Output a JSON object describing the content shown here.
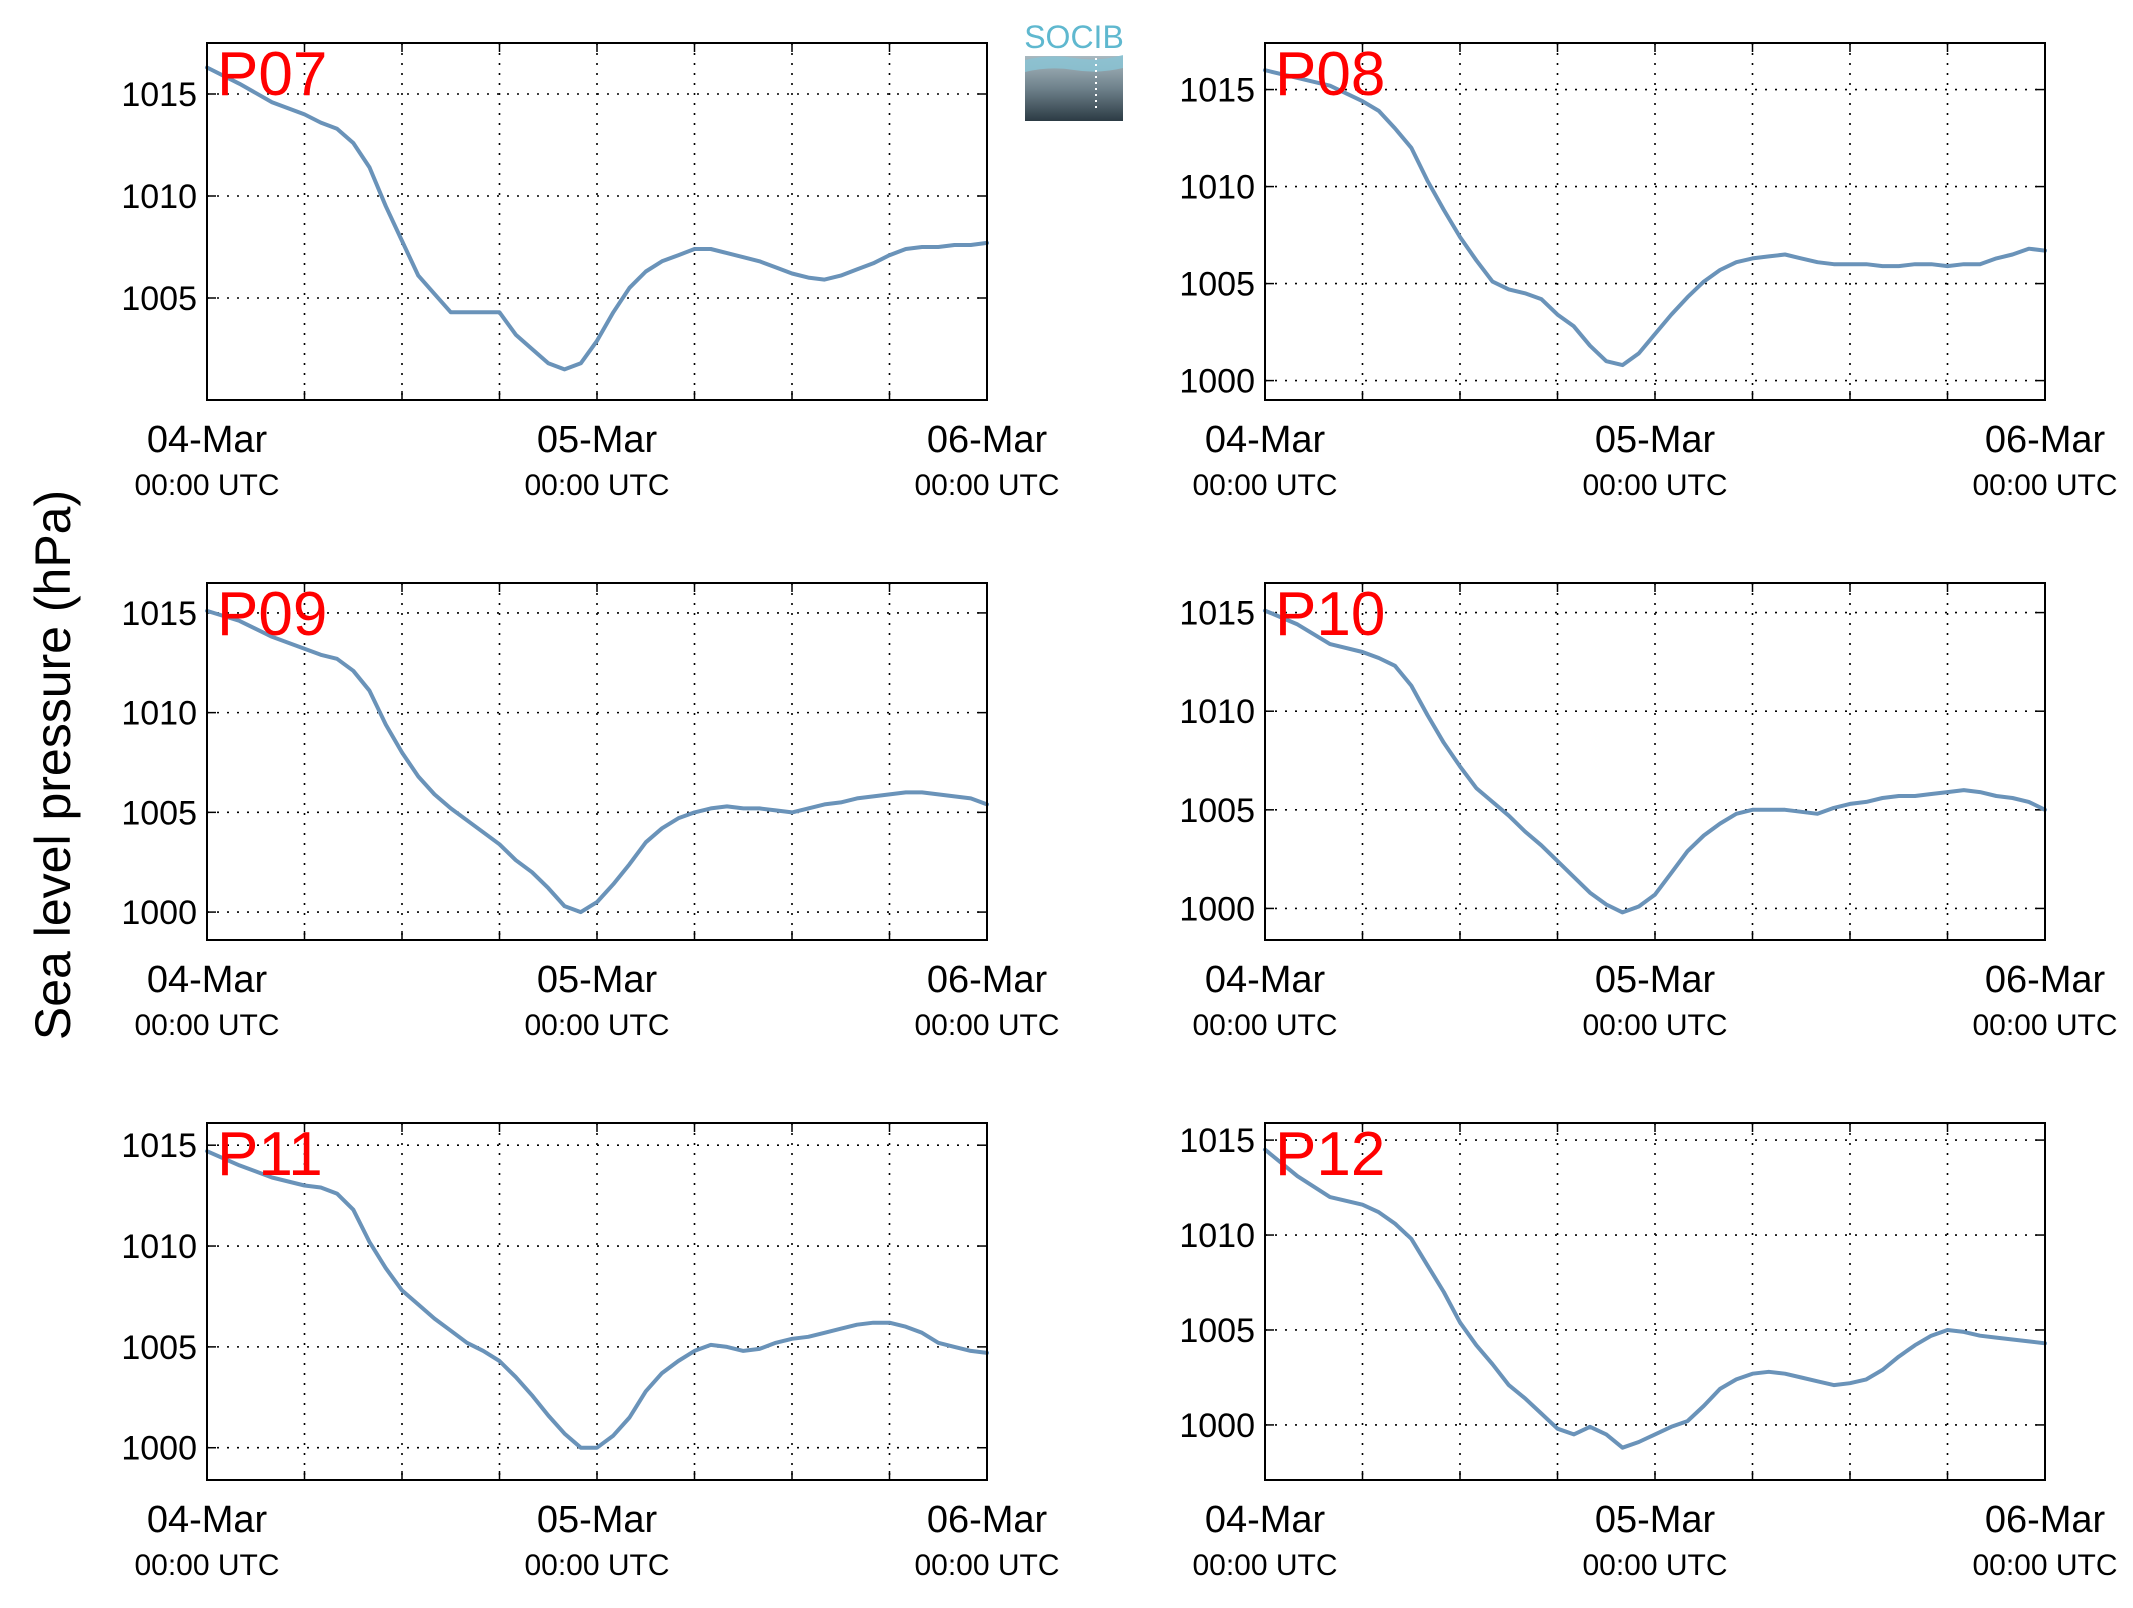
{
  "figure": {
    "ylabel": "Sea level pressure (hPa)",
    "x_tick_dates": [
      "04-Mar",
      "05-Mar",
      "06-Mar"
    ],
    "x_tick_times": [
      "00:00 UTC",
      "00:00 UTC",
      "00:00 UTC"
    ],
    "line_color": "#6a93b9",
    "station_label_color": "#ff0000"
  },
  "logo": {
    "text": "SOCIB"
  },
  "chart_data": [
    {
      "type": "line",
      "name": "P07",
      "x_unit": "hours since 04-Mar 00:00 UTC",
      "xlim": [
        0,
        48
      ],
      "ylim": [
        1000.0,
        1017.5
      ],
      "yticks": [
        1005,
        1010,
        1015
      ],
      "x": [
        0,
        2,
        4,
        6,
        7,
        8,
        9,
        10,
        11,
        12,
        13,
        14,
        15,
        16,
        17,
        18,
        19,
        20,
        21,
        22,
        23,
        24,
        25,
        26,
        27,
        28,
        29,
        30,
        31,
        32,
        33,
        34,
        35,
        36,
        37,
        38,
        39,
        40,
        41,
        42,
        43,
        44,
        45,
        46,
        47,
        48
      ],
      "values": [
        1016.3,
        1015.5,
        1014.6,
        1014.0,
        1013.6,
        1013.3,
        1012.6,
        1011.4,
        1009.5,
        1007.8,
        1006.1,
        1005.2,
        1004.3,
        1004.3,
        1004.3,
        1004.3,
        1003.2,
        1002.5,
        1001.8,
        1001.5,
        1001.8,
        1002.9,
        1004.3,
        1005.5,
        1006.3,
        1006.8,
        1007.1,
        1007.4,
        1007.4,
        1007.2,
        1007.0,
        1006.8,
        1006.5,
        1006.2,
        1006.0,
        1005.9,
        1006.1,
        1006.4,
        1006.7,
        1007.1,
        1007.4,
        1007.5,
        1007.5,
        1007.6,
        1007.6,
        1007.7
      ]
    },
    {
      "type": "line",
      "name": "P08",
      "x_unit": "hours since 04-Mar 00:00 UTC",
      "xlim": [
        0,
        48
      ],
      "ylim": [
        999.0,
        1017.4
      ],
      "yticks": [
        1000,
        1005,
        1010,
        1015
      ],
      "x": [
        0,
        2,
        4,
        6,
        7,
        8,
        9,
        10,
        11,
        12,
        13,
        14,
        15,
        16,
        17,
        18,
        19,
        20,
        21,
        22,
        23,
        24,
        25,
        26,
        27,
        28,
        29,
        30,
        31,
        32,
        33,
        34,
        35,
        36,
        37,
        38,
        39,
        40,
        41,
        42,
        43,
        44,
        45,
        46,
        47,
        48
      ],
      "values": [
        1016.0,
        1015.6,
        1015.2,
        1014.4,
        1013.9,
        1013.0,
        1012.0,
        1010.3,
        1008.8,
        1007.4,
        1006.2,
        1005.1,
        1004.7,
        1004.5,
        1004.2,
        1003.4,
        1002.8,
        1001.8,
        1001.0,
        1000.8,
        1001.4,
        1002.4,
        1003.4,
        1004.3,
        1005.1,
        1005.7,
        1006.1,
        1006.3,
        1006.4,
        1006.5,
        1006.3,
        1006.1,
        1006.0,
        1006.0,
        1006.0,
        1005.9,
        1005.9,
        1006.0,
        1006.0,
        1005.9,
        1006.0,
        1006.0,
        1006.3,
        1006.5,
        1006.8,
        1006.7
      ]
    },
    {
      "type": "line",
      "name": "P09",
      "x_unit": "hours since 04-Mar 00:00 UTC",
      "xlim": [
        0,
        48
      ],
      "ylim": [
        998.6,
        1016.5
      ],
      "yticks": [
        1000,
        1005,
        1010,
        1015
      ],
      "x": [
        0,
        2,
        4,
        6,
        7,
        8,
        9,
        10,
        11,
        12,
        13,
        14,
        15,
        16,
        17,
        18,
        19,
        20,
        21,
        22,
        23,
        24,
        25,
        26,
        27,
        28,
        29,
        30,
        31,
        32,
        33,
        34,
        35,
        36,
        37,
        38,
        39,
        40,
        41,
        42,
        43,
        44,
        45,
        46,
        47,
        48
      ],
      "values": [
        1015.1,
        1014.6,
        1013.8,
        1013.2,
        1012.9,
        1012.7,
        1012.1,
        1011.1,
        1009.4,
        1008.0,
        1006.8,
        1005.9,
        1005.2,
        1004.6,
        1004.0,
        1003.4,
        1002.6,
        1002.0,
        1001.2,
        1000.3,
        1000.0,
        1000.5,
        1001.4,
        1002.4,
        1003.5,
        1004.2,
        1004.7,
        1005.0,
        1005.2,
        1005.3,
        1005.2,
        1005.2,
        1005.1,
        1005.0,
        1005.2,
        1005.4,
        1005.5,
        1005.7,
        1005.8,
        1005.9,
        1006.0,
        1006.0,
        1005.9,
        1005.8,
        1005.7,
        1005.4
      ]
    },
    {
      "type": "line",
      "name": "P10",
      "x_unit": "hours since 04-Mar 00:00 UTC",
      "xlim": [
        0,
        48
      ],
      "ylim": [
        998.4,
        1016.5
      ],
      "yticks": [
        1000,
        1005,
        1010,
        1015
      ],
      "x": [
        0,
        2,
        4,
        6,
        7,
        8,
        9,
        10,
        11,
        12,
        13,
        14,
        15,
        16,
        17,
        18,
        19,
        20,
        21,
        22,
        23,
        24,
        25,
        26,
        27,
        28,
        29,
        30,
        31,
        32,
        33,
        34,
        35,
        36,
        37,
        38,
        39,
        40,
        41,
        42,
        43,
        44,
        45,
        46,
        47,
        48
      ],
      "values": [
        1015.1,
        1014.4,
        1013.4,
        1013.0,
        1012.7,
        1012.3,
        1011.3,
        1009.8,
        1008.4,
        1007.2,
        1006.1,
        1005.4,
        1004.7,
        1003.9,
        1003.2,
        1002.4,
        1001.6,
        1000.8,
        1000.2,
        999.8,
        1000.1,
        1000.7,
        1001.8,
        1002.9,
        1003.7,
        1004.3,
        1004.8,
        1005.0,
        1005.0,
        1005.0,
        1004.9,
        1004.8,
        1005.1,
        1005.3,
        1005.4,
        1005.6,
        1005.7,
        1005.7,
        1005.8,
        1005.9,
        1006.0,
        1005.9,
        1005.7,
        1005.6,
        1005.4,
        1005.0
      ]
    },
    {
      "type": "line",
      "name": "P11",
      "x_unit": "hours since 04-Mar 00:00 UTC",
      "xlim": [
        0,
        48
      ],
      "ylim": [
        998.4,
        1016.1
      ],
      "yticks": [
        1000,
        1005,
        1010,
        1015
      ],
      "x": [
        0,
        2,
        4,
        6,
        7,
        8,
        9,
        10,
        11,
        12,
        13,
        14,
        15,
        16,
        17,
        18,
        19,
        20,
        21,
        22,
        23,
        24,
        25,
        26,
        27,
        28,
        29,
        30,
        31,
        32,
        33,
        34,
        35,
        36,
        37,
        38,
        39,
        40,
        41,
        42,
        43,
        44,
        45,
        46,
        47,
        48
      ],
      "values": [
        1014.7,
        1014.0,
        1013.4,
        1013.0,
        1012.9,
        1012.6,
        1011.8,
        1010.2,
        1008.9,
        1007.8,
        1007.1,
        1006.4,
        1005.8,
        1005.2,
        1004.8,
        1004.3,
        1003.5,
        1002.6,
        1001.6,
        1000.7,
        1000.0,
        1000.0,
        1000.6,
        1001.5,
        1002.8,
        1003.7,
        1004.3,
        1004.8,
        1005.1,
        1005.0,
        1004.8,
        1004.9,
        1005.2,
        1005.4,
        1005.5,
        1005.7,
        1005.9,
        1006.1,
        1006.2,
        1006.2,
        1006.0,
        1005.7,
        1005.2,
        1005.0,
        1004.8,
        1004.7
      ]
    },
    {
      "type": "line",
      "name": "P12",
      "x_unit": "hours since 04-Mar 00:00 UTC",
      "xlim": [
        0,
        48
      ],
      "ylim": [
        997.1,
        1015.9
      ],
      "yticks": [
        1000,
        1005,
        1010,
        1015
      ],
      "x": [
        0,
        2,
        4,
        6,
        7,
        8,
        9,
        10,
        11,
        12,
        13,
        14,
        15,
        16,
        17,
        18,
        19,
        20,
        21,
        22,
        23,
        24,
        25,
        26,
        27,
        28,
        29,
        30,
        31,
        32,
        33,
        34,
        35,
        36,
        37,
        38,
        39,
        40,
        41,
        42,
        43,
        44,
        45,
        46,
        47,
        48
      ],
      "values": [
        1014.5,
        1013.1,
        1012.0,
        1011.6,
        1011.2,
        1010.6,
        1009.8,
        1008.4,
        1007.0,
        1005.4,
        1004.2,
        1003.2,
        1002.1,
        1001.4,
        1000.6,
        999.8,
        999.5,
        999.9,
        999.5,
        998.8,
        999.1,
        999.5,
        999.9,
        1000.2,
        1001.0,
        1001.9,
        1002.4,
        1002.7,
        1002.8,
        1002.7,
        1002.5,
        1002.3,
        1002.1,
        1002.2,
        1002.4,
        1002.9,
        1003.6,
        1004.2,
        1004.7,
        1005.0,
        1004.9,
        1004.7,
        1004.6,
        1004.5,
        1004.4,
        1004.3
      ]
    }
  ]
}
